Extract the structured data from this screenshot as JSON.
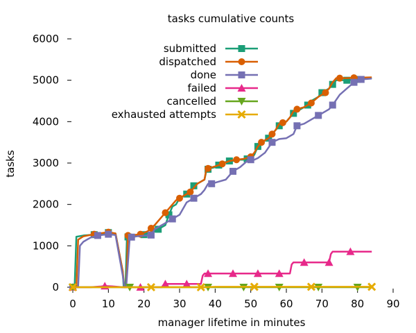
{
  "chart_data": {
    "type": "line",
    "title": "tasks cumulative counts",
    "xlabel": "manager lifetime in minutes",
    "ylabel": "tasks",
    "xlim": [
      0,
      90
    ],
    "ylim": [
      0,
      6000
    ],
    "xticks": [
      0,
      10,
      20,
      30,
      40,
      50,
      60,
      70,
      80,
      90
    ],
    "yticks": [
      0,
      1000,
      2000,
      3000,
      4000,
      5000,
      6000
    ],
    "grid": false,
    "legend_position": "top-right",
    "series": [
      {
        "name": "submitted",
        "color": "#1b9e77",
        "marker": "square",
        "x": [
          0,
          0.5,
          1,
          3,
          6,
          10,
          12,
          14,
          14.3,
          14.8,
          15.2,
          15.8,
          17,
          20,
          21,
          23,
          24,
          26,
          27,
          28,
          29,
          30,
          31,
          32,
          33,
          34,
          35,
          36,
          37,
          37.5,
          38,
          39,
          40,
          41,
          42,
          44,
          45,
          46,
          48,
          49,
          50,
          51,
          52,
          53,
          54,
          55,
          56,
          57,
          58,
          60,
          61,
          62,
          63,
          65,
          66,
          67,
          68,
          69,
          70,
          72,
          73,
          74,
          75,
          77,
          80,
          84
        ],
        "y": [
          0,
          0,
          1220,
          1250,
          1270,
          1320,
          1300,
          400,
          0,
          0,
          1200,
          1230,
          1240,
          1270,
          1300,
          1350,
          1400,
          1500,
          1750,
          1950,
          2000,
          2150,
          2200,
          2250,
          2300,
          2450,
          2500,
          2550,
          2600,
          2800,
          2850,
          2880,
          2900,
          2950,
          3000,
          3050,
          3050,
          3080,
          3080,
          3100,
          3100,
          3200,
          3400,
          3500,
          3550,
          3600,
          3700,
          3800,
          3900,
          4000,
          4100,
          4200,
          4250,
          4350,
          4400,
          4500,
          4550,
          4600,
          4700,
          4800,
          4900,
          5000,
          5000,
          5000,
          5020,
          5050
        ],
        "marker_x": [
          0,
          6,
          10,
          15.5,
          20,
          24,
          27,
          32,
          34,
          38,
          41,
          44,
          49,
          52,
          55,
          58,
          62,
          66,
          70,
          73,
          77,
          80
        ]
      },
      {
        "name": "dispatched",
        "color": "#d95f02",
        "marker": "circle",
        "x": [
          0,
          1,
          1.5,
          3,
          6,
          10,
          12,
          14,
          14.5,
          15,
          15.5,
          17,
          19,
          21,
          23,
          25,
          27,
          28,
          29,
          30,
          31,
          32,
          33,
          34,
          35,
          36,
          37,
          37.5,
          38,
          40,
          42,
          44,
          46,
          48,
          50,
          51,
          52,
          53,
          54,
          55,
          57,
          58,
          60,
          61,
          62,
          63,
          65,
          67,
          69,
          71,
          72,
          73,
          74,
          75,
          77,
          79,
          84
        ],
        "y": [
          0,
          0,
          1150,
          1230,
          1280,
          1330,
          1300,
          400,
          0,
          0,
          1250,
          1260,
          1280,
          1350,
          1500,
          1700,
          1900,
          2000,
          2100,
          2150,
          2200,
          2250,
          2300,
          2400,
          2500,
          2550,
          2600,
          2850,
          2870,
          2920,
          2980,
          3050,
          3080,
          3100,
          3150,
          3250,
          3400,
          3500,
          3550,
          3600,
          3800,
          3950,
          4000,
          4100,
          4250,
          4300,
          4350,
          4450,
          4600,
          4700,
          4800,
          4950,
          5050,
          5050,
          5050,
          5060,
          5070
        ],
        "marker_x": [
          0,
          6,
          10,
          15.5,
          19,
          22,
          26,
          30,
          33,
          38,
          42,
          46,
          50,
          53,
          56,
          59,
          63,
          67,
          71,
          75,
          79
        ]
      },
      {
        "name": "done",
        "color": "#7570b3",
        "marker": "square",
        "x": [
          0,
          1.5,
          2,
          3,
          5,
          7,
          10,
          12,
          14,
          14.5,
          15,
          16,
          16.5,
          18,
          22,
          23,
          26,
          28,
          30,
          32,
          34,
          36,
          37,
          38,
          39,
          41,
          43,
          45,
          47,
          49,
          50,
          51,
          52,
          54,
          56,
          58,
          60,
          62,
          63,
          65,
          67,
          69,
          71,
          72,
          73,
          75,
          77,
          79,
          81,
          84
        ],
        "y": [
          0,
          0,
          1000,
          1100,
          1200,
          1250,
          1280,
          1260,
          300,
          0,
          0,
          1200,
          1210,
          1230,
          1260,
          1400,
          1550,
          1650,
          1750,
          2050,
          2150,
          2250,
          2350,
          2500,
          2500,
          2550,
          2600,
          2800,
          2900,
          3050,
          3080,
          3080,
          3120,
          3250,
          3500,
          3580,
          3600,
          3700,
          3900,
          3950,
          4050,
          4150,
          4250,
          4300,
          4400,
          4650,
          4800,
          4950,
          5020,
          5040
        ],
        "marker_x": [
          0,
          7,
          10,
          16.5,
          22,
          28,
          34,
          39,
          45,
          50,
          56,
          63,
          69,
          73,
          79,
          81
        ]
      },
      {
        "name": "failed",
        "color": "#e7298a",
        "marker": "triangle",
        "x": [
          0,
          5,
          8,
          9,
          11,
          14,
          18,
          20,
          22,
          24,
          25,
          25.5,
          26,
          28,
          30,
          32,
          36,
          36.5,
          37,
          40,
          45,
          50,
          55,
          60,
          61,
          61.5,
          62,
          65,
          70,
          72,
          72.5,
          73,
          76,
          80,
          84
        ],
        "y": [
          0,
          0,
          20,
          30,
          20,
          0,
          0,
          0,
          0,
          0,
          0,
          60,
          80,
          80,
          80,
          80,
          80,
          280,
          330,
          330,
          330,
          330,
          330,
          330,
          330,
          550,
          600,
          600,
          600,
          600,
          800,
          860,
          860,
          860,
          860
        ],
        "marker_x": [
          0,
          9,
          19,
          26,
          32,
          38,
          45,
          52,
          58,
          65,
          72,
          78
        ]
      },
      {
        "name": "cancelled",
        "color": "#66a61e",
        "marker": "triangle-down",
        "x": [
          0,
          10,
          20,
          30,
          40,
          50,
          60,
          70,
          80,
          84
        ],
        "y": [
          0,
          0,
          0,
          0,
          0,
          0,
          0,
          0,
          0,
          0
        ],
        "marker_x": [
          0,
          16,
          38,
          48,
          58,
          69,
          80
        ]
      },
      {
        "name": "exhausted attempts",
        "color": "#e6ab02",
        "marker": "x",
        "x": [
          0,
          10,
          20,
          30,
          37,
          40,
          50,
          60,
          70,
          80,
          84
        ],
        "y": [
          0,
          0,
          0,
          0,
          0,
          10,
          10,
          10,
          10,
          10,
          10
        ],
        "marker_x": [
          0,
          22,
          36,
          51,
          67,
          84
        ]
      }
    ]
  }
}
